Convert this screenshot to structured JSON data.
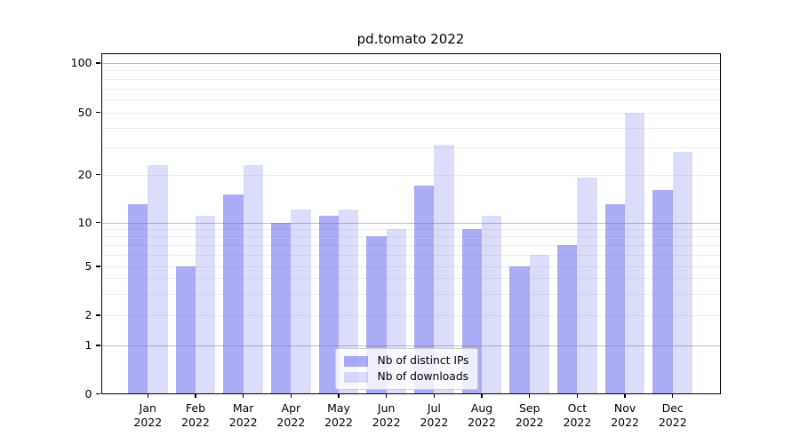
{
  "title": "pd.tomato 2022",
  "chart_data": {
    "type": "bar",
    "title": "pd.tomato 2022",
    "categories": [
      "Jan",
      "Feb",
      "Mar",
      "Apr",
      "May",
      "Jun",
      "Jul",
      "Aug",
      "Sep",
      "Oct",
      "Nov",
      "Dec"
    ],
    "x_year_label": "2022",
    "series": [
      {
        "name": "Nb of distinct IPs",
        "values": [
          13,
          5,
          15,
          10,
          11,
          8,
          17,
          9,
          5,
          7,
          13,
          16
        ],
        "color": "#6666ee",
        "alpha": 0.55
      },
      {
        "name": "Nb of downloads",
        "values": [
          23,
          11,
          23,
          12,
          12,
          9,
          31,
          11,
          6,
          19,
          50,
          28
        ],
        "color": "#6666ee",
        "alpha": 0.23
      }
    ],
    "xlabel": "",
    "ylabel": "",
    "yscale": "symlog",
    "ylim": [
      0,
      115
    ],
    "ytick_labels": [
      "0",
      "1",
      "2",
      "5",
      "10",
      "20",
      "50",
      "100"
    ],
    "yticks": [
      0,
      1,
      2,
      5,
      10,
      20,
      50,
      100
    ],
    "major_gridlines": [
      1,
      10,
      100
    ],
    "minor_gridlines": [
      2,
      3,
      4,
      5,
      6,
      7,
      8,
      9,
      20,
      30,
      40,
      50,
      60,
      70,
      80,
      90
    ],
    "grid": "on",
    "legend_position": "lower-center"
  }
}
